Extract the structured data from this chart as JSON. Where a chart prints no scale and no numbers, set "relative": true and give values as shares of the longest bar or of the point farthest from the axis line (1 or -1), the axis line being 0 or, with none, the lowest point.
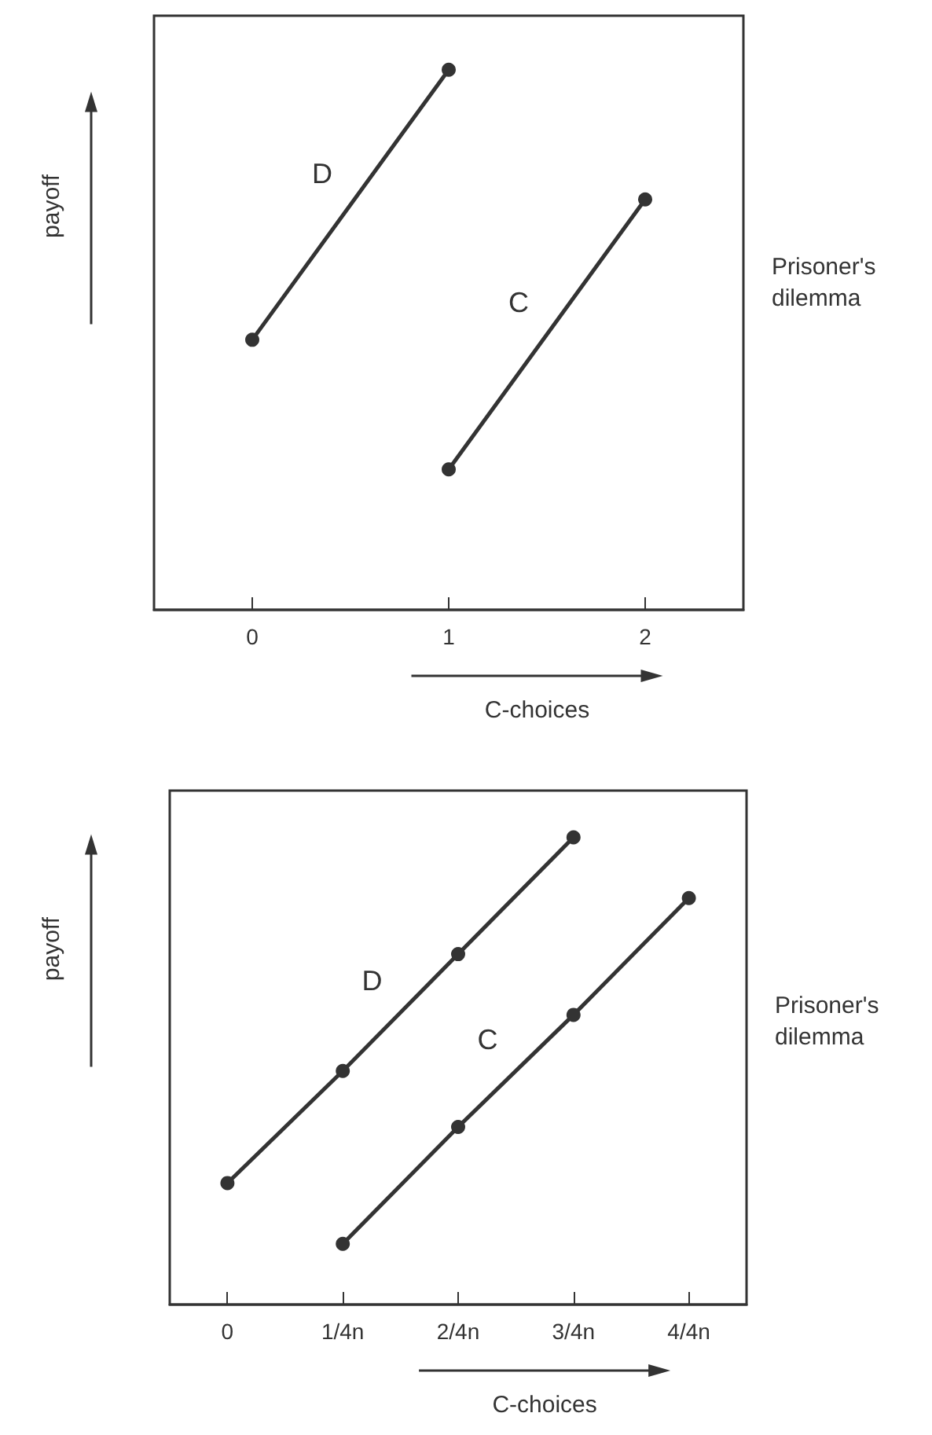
{
  "chart_data": [
    {
      "type": "line",
      "relative": true,
      "categories": [
        "0",
        "1",
        "2"
      ],
      "xlabel": "C-choices",
      "ylabel": "payoff",
      "annotations": [
        "Prisoner's dilemma"
      ],
      "marker": "circle",
      "grid": false,
      "legend": false,
      "series": [
        {
          "name": "D",
          "color": "#333333",
          "values": [
            0.5,
            1,
            null
          ]
        },
        {
          "name": "C",
          "color": "#333333",
          "values": [
            null,
            0.26,
            0.76
          ]
        }
      ]
    },
    {
      "type": "line",
      "relative": true,
      "categories": [
        "0",
        "1/4n",
        "2/4n",
        "3/4n",
        "4/4n"
      ],
      "xlabel": "C-choices",
      "ylabel": "payoff",
      "annotations": [
        "Prisoner's dilemma"
      ],
      "marker": "circle",
      "grid": false,
      "legend": false,
      "series": [
        {
          "name": "D",
          "color": "#333333",
          "values": [
            0.26,
            0.5,
            0.75,
            1,
            null
          ]
        },
        {
          "name": "C",
          "color": "#333333",
          "values": [
            null,
            0.13,
            0.38,
            0.62,
            0.87
          ]
        }
      ]
    }
  ]
}
